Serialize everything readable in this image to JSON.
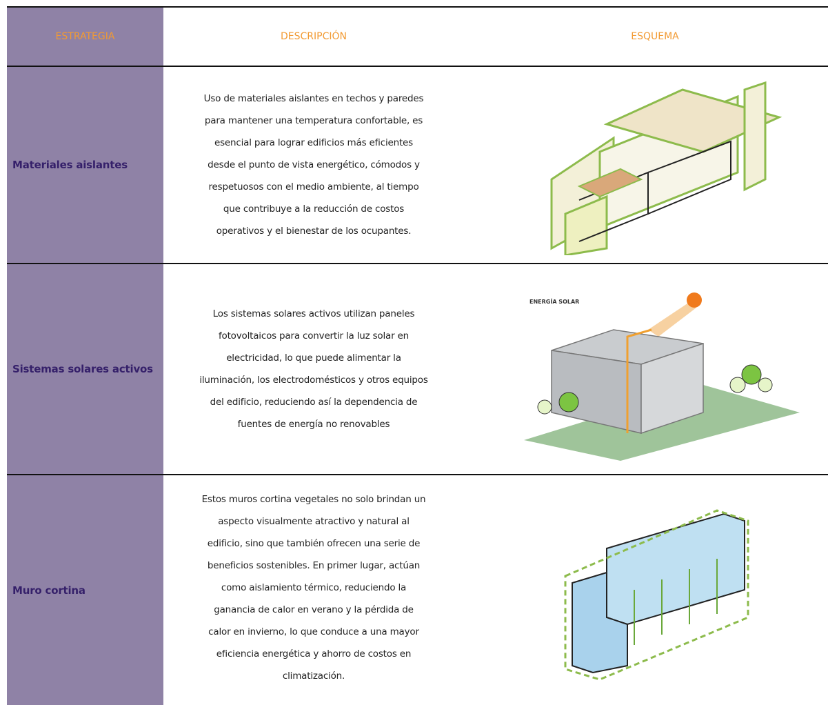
{
  "table": {
    "header": [
      "ESTRATEGIA",
      "DESCRIPCIÓN",
      "ESQUEMA"
    ],
    "rows": [
      {
        "strategy": "Materiales aislantes",
        "description": [
          "Uso de materiales aislantes en techos y paredes",
          "para mantener una temperatura confortable, es",
          "esencial para lograr edificios más eficientes",
          "desde el punto de vista energético, cómodos y",
          "respetuosos con el medio ambiente, al tiempo",
          "que contribuye a la reducción de costos",
          "operativos y el bienestar de los ocupantes."
        ]
      },
      {
        "strategy": "Sistemas solares activos",
        "description": [
          "Los sistemas solares activos utilizan paneles",
          "fotovoltaicos para convertir la luz solar en",
          "electricidad, lo que puede alimentar la",
          "iluminación, los electrodomésticos y otros equipos",
          "del edificio, reduciendo así la dependencia de",
          "fuentes de energía no renovables"
        ],
        "schematic_label": "ENERGÍA SOLAR"
      },
      {
        "strategy": "Muro cortina",
        "description": [
          "Estos muros cortina vegetales no solo brindan un",
          "aspecto visualmente atractivo y natural al",
          "edificio, sino que también ofrecen una serie de",
          "beneficios sostenibles. En primer lugar, actúan",
          "como aislamiento térmico, reduciendo la",
          "ganancia de calor en verano y la pérdida de",
          "calor en invierno, lo que conduce a una mayor",
          "eficiencia energética y ahorro de costos en",
          "climatización."
        ]
      }
    ]
  }
}
